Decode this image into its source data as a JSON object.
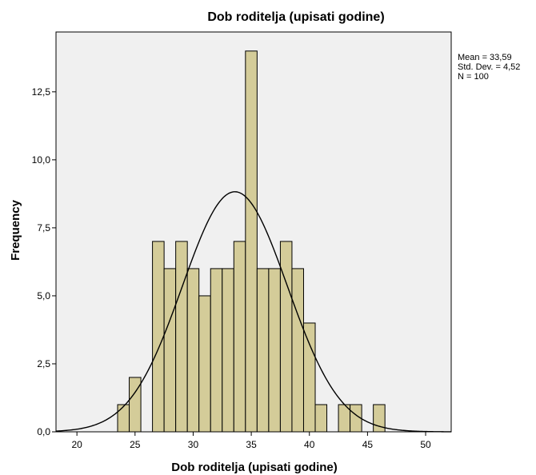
{
  "chart_data": {
    "type": "bar",
    "title": "Dob roditelja (upisati godine)",
    "xlabel": "Dob roditelja (upisati godine)",
    "ylabel": "Frequency",
    "xlim": [
      18.2,
      52.2
    ],
    "ylim": [
      0,
      14.7
    ],
    "x_ticks": [
      "20",
      "25",
      "30",
      "35",
      "40",
      "45",
      "50"
    ],
    "y_ticks": [
      "0,0",
      "2,5",
      "5,0",
      "7,5",
      "10,0",
      "12,5"
    ],
    "bin_width": 1,
    "bins": [
      {
        "x": 24,
        "value": 1
      },
      {
        "x": 25,
        "value": 2
      },
      {
        "x": 27,
        "value": 7
      },
      {
        "x": 28,
        "value": 6
      },
      {
        "x": 29,
        "value": 7
      },
      {
        "x": 30,
        "value": 6
      },
      {
        "x": 31,
        "value": 5
      },
      {
        "x": 32,
        "value": 6
      },
      {
        "x": 33,
        "value": 6
      },
      {
        "x": 34,
        "value": 7
      },
      {
        "x": 35,
        "value": 14
      },
      {
        "x": 36,
        "value": 6
      },
      {
        "x": 37,
        "value": 6
      },
      {
        "x": 38,
        "value": 7
      },
      {
        "x": 39,
        "value": 6
      },
      {
        "x": 40,
        "value": 4
      },
      {
        "x": 41,
        "value": 1
      },
      {
        "x": 43,
        "value": 1
      },
      {
        "x": 44,
        "value": 1
      },
      {
        "x": 46,
        "value": 1
      }
    ],
    "normal_curve": {
      "mean": 33.59,
      "sd": 4.52,
      "n": 100
    },
    "stats_text": [
      "Mean = 33,59",
      "Std. Dev. = 4,52",
      "N = 100"
    ],
    "colors": {
      "bar_fill": "#d4cc99",
      "bar_stroke": "#000000",
      "plot_bg": "#f0f0f0",
      "curve": "#000000"
    }
  }
}
